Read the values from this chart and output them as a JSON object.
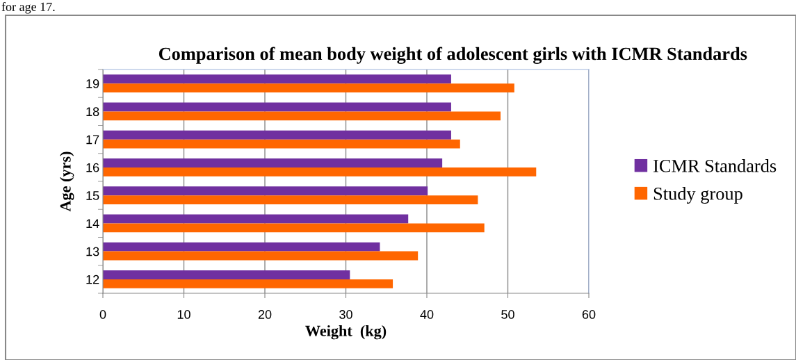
{
  "chart_data": {
    "type": "bar",
    "orientation": "horizontal",
    "title": "Comparison of mean body weight of adolescent girls with ICMR Standards",
    "xlabel": "Weight  (kg)",
    "ylabel": "Age (yrs)",
    "categories": [
      "19",
      "18",
      "17",
      "16",
      "15",
      "14",
      "13",
      "12"
    ],
    "series": [
      {
        "name": "ICMR Standards",
        "color": "#7030a0",
        "values": [
          43.0,
          43.0,
          43.0,
          41.9,
          40.1,
          37.7,
          34.2,
          30.5
        ]
      },
      {
        "name": "Study group",
        "color": "#ff6600",
        "values": [
          50.8,
          49.1,
          44.1,
          53.5,
          46.3,
          47.1,
          38.9,
          35.8
        ]
      }
    ],
    "xlim": [
      0,
      60
    ],
    "xticks": [
      0,
      10,
      20,
      30,
      40,
      50,
      60
    ],
    "grid": "x",
    "legend": "right",
    "annotations": [
      "for age 17."
    ]
  }
}
